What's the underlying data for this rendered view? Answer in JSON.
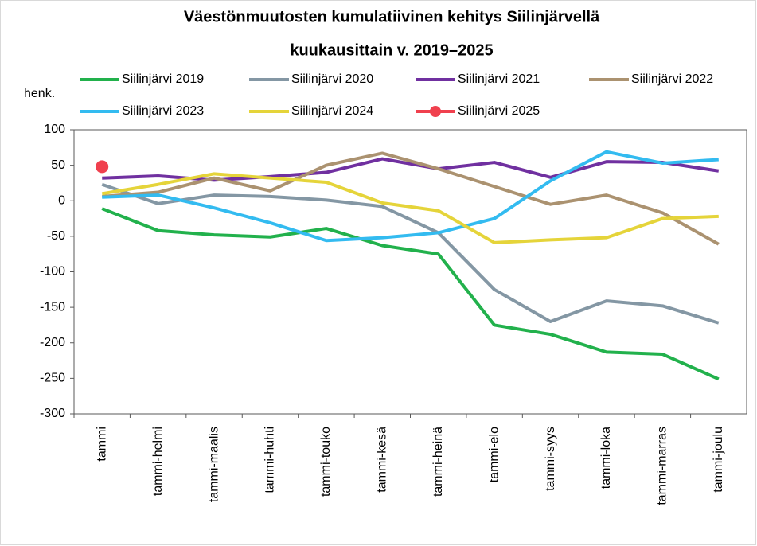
{
  "chart_data": {
    "type": "line",
    "title": [
      "Väestönmuutosten kumulatiivinen kehitys Siilinjärvellä",
      "kuukausittain v. 2019–2025"
    ],
    "y_label": "henk.",
    "categories": [
      "tammi",
      "tammi-helmi",
      "tammi-maalis",
      "tammi-huhti",
      "tammi-touko",
      "tammi-kesä",
      "tammi-heinä",
      "tammi-elo",
      "tammi-syys",
      "tammi-loka",
      "tammi-marras",
      "tammi-joulu"
    ],
    "series": [
      {
        "name": "Siilinjärvi 2019",
        "color": "#22b14c",
        "values": [
          -11,
          -42,
          -48,
          -51,
          -39,
          -63,
          -75,
          -175,
          -188,
          -213,
          -216,
          -251
        ]
      },
      {
        "name": "Siilinjärvi 2020",
        "color": "#8497a4",
        "values": [
          23,
          -4,
          8,
          6,
          1,
          -8,
          -45,
          -125,
          -170,
          -141,
          -148,
          -172
        ]
      },
      {
        "name": "Siilinjärvi 2021",
        "color": "#7030a0",
        "values": [
          32,
          35,
          29,
          34,
          40,
          59,
          45,
          54,
          33,
          55,
          54,
          42
        ]
      },
      {
        "name": "Siilinjärvi 2022",
        "color": "#ab9270",
        "values": [
          6,
          12,
          32,
          14,
          50,
          67,
          45,
          20,
          -5,
          8,
          -17,
          -61
        ]
      },
      {
        "name": "Siilinjärvi 2023",
        "color": "#33bbf0",
        "values": [
          5,
          8,
          -10,
          -31,
          -56,
          -52,
          -45,
          -25,
          28,
          69,
          53,
          58
        ]
      },
      {
        "name": "Siilinjärvi 2024",
        "color": "#e5d43a",
        "values": [
          10,
          23,
          38,
          32,
          26,
          -3,
          -14,
          -59,
          -55,
          -52,
          -25,
          -22
        ]
      },
      {
        "name": "Siilinjärvi 2025",
        "color": "#f0404e",
        "marker": true,
        "values": [
          48,
          null,
          null,
          null,
          null,
          null,
          null,
          null,
          null,
          null,
          null,
          null
        ]
      }
    ],
    "ylim": [
      -300,
      100
    ],
    "yticks": [
      -300,
      -250,
      -200,
      -150,
      -100,
      -50,
      0,
      50,
      100
    ],
    "grid": false
  }
}
